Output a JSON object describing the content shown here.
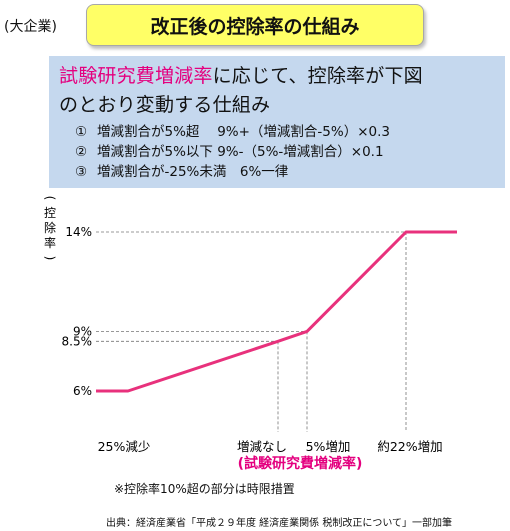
{
  "corp_label": "(大企業)",
  "title": "改正後の控除率の仕組み",
  "lead": {
    "highlight": "試験研究費増減率",
    "rest_line1": "に応じて、控除率が下図",
    "line2": "のとおり変動する仕組み"
  },
  "items": [
    {
      "num": "①",
      "text": "増減割合が5%超　 9%+（増減割合-5%）×0.3"
    },
    {
      "num": "②",
      "text": "増減割合が5%以下 9%-（5%-増減割合）×0.1"
    },
    {
      "num": "③",
      "text": "増減割合が-25%未満　6%一律"
    }
  ],
  "colors": {
    "line": "#e8317c",
    "highlight_text": "#e4007f",
    "box": "#c5d8ee",
    "title_bg": "#ffff66"
  },
  "chart_data": {
    "type": "line",
    "ylabel": "(控除率)",
    "x_tick_labels": [
      "25%減少",
      "増減なし",
      "5%増加",
      "約22%増加"
    ],
    "y_tick_labels": [
      "14%",
      "9%",
      "8.5%",
      "6%"
    ],
    "x_axis_title": "(試験研究費増減率)",
    "series": [
      {
        "x": [
          -35,
          -25,
          0,
          5,
          22,
          30
        ],
        "y": [
          6,
          6,
          8.5,
          9,
          14,
          14
        ]
      }
    ],
    "guides": {
      "x": [
        0,
        5,
        22
      ],
      "y": [
        14,
        9,
        8.5
      ]
    },
    "ylim": [
      6,
      14
    ]
  },
  "footnote": "※控除率10%超の部分は時限措置",
  "source": "出典：経済産業省「平成２９年度 経済産業関係 税制改正について」一部加筆"
}
